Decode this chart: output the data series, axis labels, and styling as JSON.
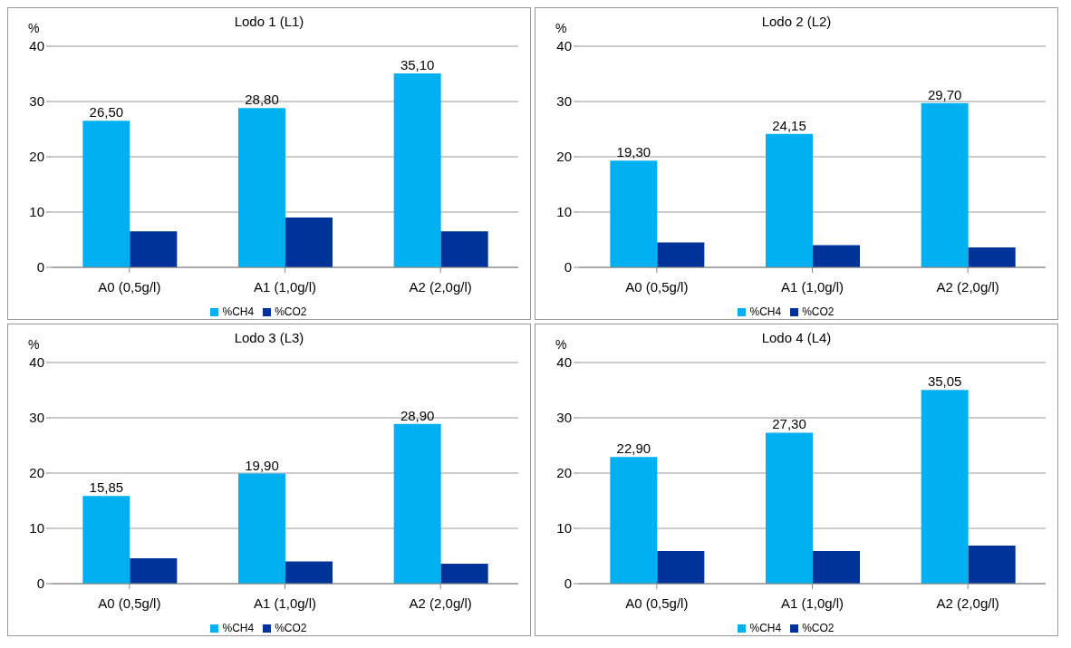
{
  "chart_data": [
    {
      "type": "bar",
      "title": "Lodo 1 (L1)",
      "ylabel": "%",
      "categories": [
        "A0 (0,5g/l)",
        "A1 (1,0g/l)",
        "A2 (2,0g/l)"
      ],
      "series": [
        {
          "name": "%CH4",
          "color": "#00b0f0",
          "values": [
            26.5,
            28.8,
            35.1
          ],
          "value_labels": [
            "26,50",
            "28,80",
            "35,10"
          ]
        },
        {
          "name": "%CO2",
          "color": "#003399",
          "values": [
            6.5,
            9.0,
            6.5
          ]
        }
      ],
      "ylim": [
        0,
        40
      ],
      "yticks": [
        0,
        10,
        20,
        30,
        40
      ],
      "grid": "y",
      "legend": "bottom"
    },
    {
      "type": "bar",
      "title": "Lodo 2 (L2)",
      "ylabel": "%",
      "categories": [
        "A0 (0,5g/l)",
        "A1 (1,0g/l)",
        "A2 (2,0g/l)"
      ],
      "series": [
        {
          "name": "%CH4",
          "color": "#00b0f0",
          "values": [
            19.3,
            24.15,
            29.7
          ],
          "value_labels": [
            "19,30",
            "24,15",
            "29,70"
          ]
        },
        {
          "name": "%CO2",
          "color": "#003399",
          "values": [
            4.5,
            4.0,
            3.6
          ]
        }
      ],
      "ylim": [
        0,
        40
      ],
      "yticks": [
        0,
        10,
        20,
        30,
        40
      ],
      "grid": "y",
      "legend": "bottom"
    },
    {
      "type": "bar",
      "title": "Lodo 3 (L3)",
      "ylabel": "%",
      "categories": [
        "A0 (0,5g/l)",
        "A1 (1,0g/l)",
        "A2 (2,0g/l)"
      ],
      "series": [
        {
          "name": "%CH4",
          "color": "#00b0f0",
          "values": [
            15.85,
            19.9,
            28.9
          ],
          "value_labels": [
            "15,85",
            "19,90",
            "28,90"
          ]
        },
        {
          "name": "%CO2",
          "color": "#003399",
          "values": [
            4.6,
            4.0,
            3.6
          ]
        }
      ],
      "ylim": [
        0,
        40
      ],
      "yticks": [
        0,
        10,
        20,
        30,
        40
      ],
      "grid": "y",
      "legend": "bottom"
    },
    {
      "type": "bar",
      "title": "Lodo 4 (L4)",
      "ylabel": "%",
      "categories": [
        "A0 (0,5g/l)",
        "A1 (1,0g/l)",
        "A2 (2,0g/l)"
      ],
      "series": [
        {
          "name": "%CH4",
          "color": "#00b0f0",
          "values": [
            22.9,
            27.3,
            35.05
          ],
          "value_labels": [
            "22,90",
            "27,30",
            "35,05"
          ]
        },
        {
          "name": "%CO2",
          "color": "#003399",
          "values": [
            5.9,
            5.9,
            6.9
          ]
        }
      ],
      "ylim": [
        0,
        40
      ],
      "yticks": [
        0,
        10,
        20,
        30,
        40
      ],
      "grid": "y",
      "legend": "bottom"
    }
  ]
}
